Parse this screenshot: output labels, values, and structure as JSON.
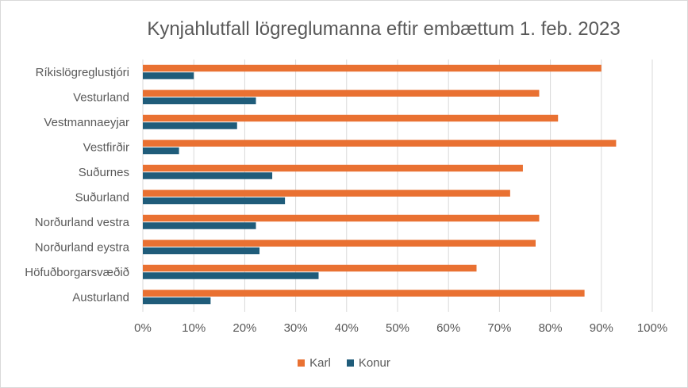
{
  "chart_data": {
    "type": "bar",
    "orientation": "horizontal",
    "title": "Kynjahlutfall lögreglumanna eftir embættum 1. feb. 2023",
    "categories": [
      "Ríkislögreglustjóri",
      "Vesturland",
      "Vestmannaeyjar",
      "Vestfirðir",
      "Suðurnes",
      "Suðurland",
      "Norðurland vestra",
      "Norðurland eystra",
      "Höfuðborgarsvæðið",
      "Austurland"
    ],
    "series": [
      {
        "name": "Karl",
        "color": "#E97132",
        "values": [
          90,
          77.8,
          81.5,
          92.9,
          74.6,
          72.1,
          77.8,
          77.1,
          65.5,
          86.7
        ]
      },
      {
        "name": "Konur",
        "color": "#1F5C7A",
        "values": [
          10,
          22.2,
          18.5,
          7.1,
          25.4,
          27.9,
          22.2,
          22.9,
          34.5,
          13.3
        ]
      }
    ],
    "x_ticks": [
      "0%",
      "10%",
      "20%",
      "30%",
      "40%",
      "50%",
      "60%",
      "70%",
      "80%",
      "90%",
      "100%"
    ],
    "xlim": [
      0,
      100
    ],
    "grid": true,
    "legend_position": "bottom"
  }
}
